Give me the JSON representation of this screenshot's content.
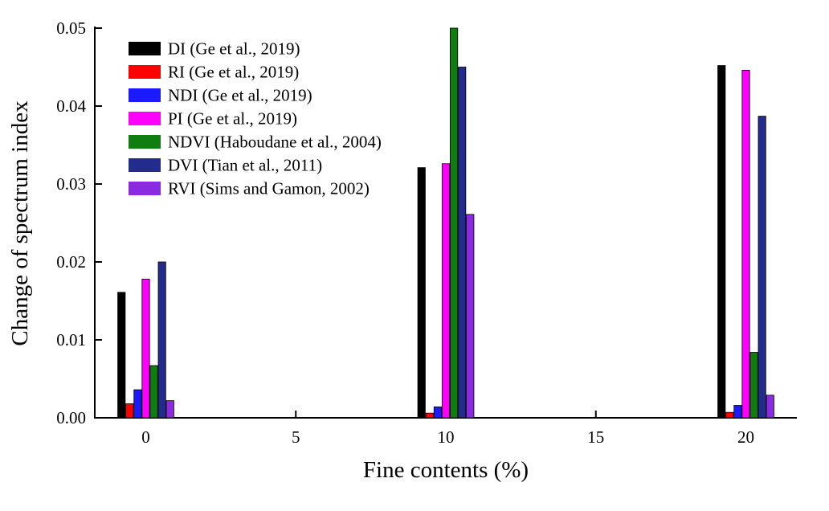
{
  "chart_data": {
    "type": "bar",
    "title": "",
    "xlabel": "Fine contents (%)",
    "ylabel": "Change of spectrum index",
    "categories": [
      0,
      10,
      20
    ],
    "x_ticks": [
      0,
      5,
      10,
      15,
      20
    ],
    "y_ticks": [
      0,
      0.01,
      0.02,
      0.03,
      0.04,
      0.05
    ],
    "xlim": [
      -1.7,
      21.7
    ],
    "ylim": [
      0,
      0.05
    ],
    "grid": false,
    "legend_position": "top-left",
    "series": [
      {
        "name": "DI (Ge et al., 2019)",
        "color": "#000000",
        "values": [
          0.0161,
          0.0321,
          0.0452
        ]
      },
      {
        "name": "RI (Ge et al., 2019)",
        "color": "#fe0000",
        "values": [
          0.0018,
          0.0006,
          0.0007
        ]
      },
      {
        "name": "NDI (Ge et al., 2019)",
        "color": "#1a1aff",
        "values": [
          0.0036,
          0.0014,
          0.0016
        ]
      },
      {
        "name": "PI (Ge et al., 2019)",
        "color": "#ff00ff",
        "values": [
          0.0178,
          0.0326,
          0.0446
        ]
      },
      {
        "name": "NDVI (Haboudane et al., 2004)",
        "color": "#0f7d0f",
        "values": [
          0.0067,
          0.05,
          0.0084
        ]
      },
      {
        "name": "DVI (Tian et al., 2011)",
        "color": "#232b8c",
        "values": [
          0.02,
          0.045,
          0.0387
        ]
      },
      {
        "name": "RVI (Sims and Gamon, 2002)",
        "color": "#8a2be2",
        "values": [
          0.0022,
          0.0261,
          0.0029
        ]
      }
    ]
  }
}
